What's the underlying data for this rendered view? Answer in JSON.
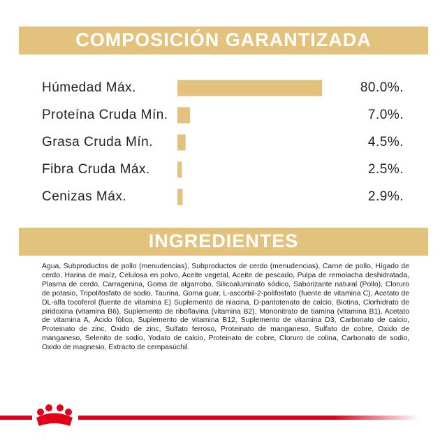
{
  "chart_data": {
    "type": "bar",
    "title": "COMPOSICIÓN GARANTIZADA",
    "categories": [
      "Húmedad Máx.",
      "Proteína Cruda Mín.",
      "Grasa Cruda Mín.",
      "Fibra Cruda Máx.",
      "Cenizas Máx."
    ],
    "values": [
      80.0,
      7.0,
      4.5,
      2.5,
      2.9
    ],
    "value_labels": [
      "80.0%.",
      "7.0%.",
      "4.5%.",
      "2.5%.",
      "2.9%."
    ],
    "color": "#e2c27c"
  },
  "ingredients": {
    "title": "INGREDIENTES",
    "text": "Agua, Subproductos de pollo (menudencias), Subproductos de cerdo (menudencias), Carne de pollo, Hígado de cerdo, Harina de maíz, Celulosa en polvo, Aceite vegetal, Aceite de pescado, Pulpa de remolacha deshidratada, Plasma de cerdo, Carragenina, Goma de algarrobo, Silicoaluminato sódico, Saborizante natural (Pollo), Cloruro de potasio, Tripolifosfato de sodio, Taurina, Goma guar, L-ascorbil-2-polifosfato (fuente de vitamina C), Acetato de DL-alfa tocoferol (fuente de vitamina E) Suplemento de niacina, D-pantotenato de calcio, Biotina, Clorhidrato de piridoxina (vitamina B6), Suplemento de riboflavina (vitamina B2), Mononitrato de tiamina (vitamina B1), Acetato de vitamina A, Ácido fólico, Suplemento de vitamina B12, Suplemento de vitamina D3, Carbonato de calcio, Proteinato de zinc, Óxido de zinc, Sulfato ferroso, Proteinato de manganeso, Sulfato de cobre, Oxido de manganeso, Selenito de sodio, Yodato de calcio, Proteinato de cobre, Cloruro de colina, Carbonato de sodio, Oxido de magnesio, Extracto de cempasúchil."
  }
}
